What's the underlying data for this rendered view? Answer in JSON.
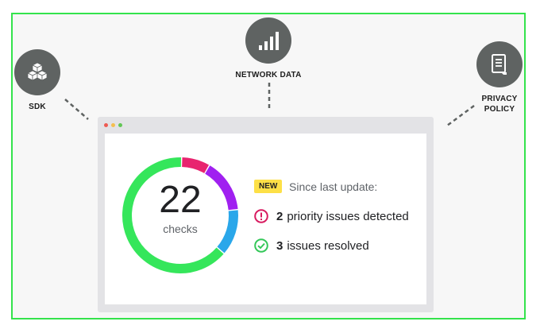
{
  "nodes": {
    "sdk": {
      "label": "SDK",
      "icon": "cube-stack-icon"
    },
    "network": {
      "label": "NETWORK DATA",
      "icon": "signal-bars-icon"
    },
    "privacy": {
      "label_line1": "PRIVACY",
      "label_line2": "POLICY",
      "icon": "document-icon"
    }
  },
  "window": {
    "controls": [
      "close",
      "minimize",
      "maximize"
    ]
  },
  "summary": {
    "count": "22",
    "count_label": "checks",
    "badge": "NEW",
    "since": "Since last update:",
    "priority_count": "2",
    "priority_text": "priority issues detected",
    "resolved_count": "3",
    "resolved_text": "issues resolved"
  },
  "gauge_segments": [
    {
      "name": "passed",
      "fraction": 0.64,
      "color": "#35e65b"
    },
    {
      "name": "pink",
      "fraction": 0.08,
      "color": "#e8246f"
    },
    {
      "name": "purple",
      "fraction": 0.15,
      "color": "#a020f0"
    },
    {
      "name": "blue",
      "fraction": 0.13,
      "color": "#2aa7ea"
    }
  ],
  "colors": {
    "accent_green": "#34e34c",
    "node_gray": "#5f6362",
    "badge_yellow": "#fde047",
    "warning_pink": "#d81b60",
    "success_green": "#34c759"
  }
}
